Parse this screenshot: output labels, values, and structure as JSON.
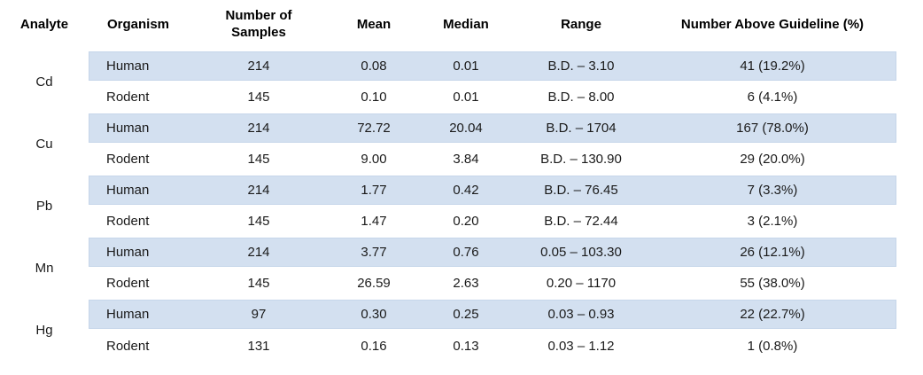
{
  "table": {
    "band_color": "#d3e0f0",
    "columns": {
      "analyte": "Analyte",
      "organism": "Organism",
      "samples": "Number of Samples",
      "mean": "Mean",
      "median": "Median",
      "range": "Range",
      "above": "Number Above Guideline (%)"
    },
    "groups": [
      {
        "analyte": "Cd",
        "rows": [
          {
            "organism": "Human",
            "samples": "214",
            "mean": "0.08",
            "median": "0.01",
            "range": "B.D. – 3.10",
            "above": "41 (19.2%)"
          },
          {
            "organism": "Rodent",
            "samples": "145",
            "mean": "0.10",
            "median": "0.01",
            "range": "B.D. – 8.00",
            "above": "6 (4.1%)"
          }
        ]
      },
      {
        "analyte": "Cu",
        "rows": [
          {
            "organism": "Human",
            "samples": "214",
            "mean": "72.72",
            "median": "20.04",
            "range": "B.D. – 1704",
            "above": "167 (78.0%)"
          },
          {
            "organism": "Rodent",
            "samples": "145",
            "mean": "9.00",
            "median": "3.84",
            "range": "B.D. – 130.90",
            "above": "29 (20.0%)"
          }
        ]
      },
      {
        "analyte": "Pb",
        "rows": [
          {
            "organism": "Human",
            "samples": "214",
            "mean": "1.77",
            "median": "0.42",
            "range": "B.D. – 76.45",
            "above": "7 (3.3%)"
          },
          {
            "organism": "Rodent",
            "samples": "145",
            "mean": "1.47",
            "median": "0.20",
            "range": "B.D. – 72.44",
            "above": "3 (2.1%)"
          }
        ]
      },
      {
        "analyte": "Mn",
        "rows": [
          {
            "organism": "Human",
            "samples": "214",
            "mean": "3.77",
            "median": "0.76",
            "range": "0.05 – 103.30",
            "above": "26 (12.1%)"
          },
          {
            "organism": "Rodent",
            "samples": "145",
            "mean": "26.59",
            "median": "2.63",
            "range": "0.20 – 1170",
            "above": "55 (38.0%)"
          }
        ]
      },
      {
        "analyte": "Hg",
        "rows": [
          {
            "organism": "Human",
            "samples": "97",
            "mean": "0.30",
            "median": "0.25",
            "range": "0.03 – 0.93",
            "above": "22 (22.7%)"
          },
          {
            "organism": "Rodent",
            "samples": "131",
            "mean": "0.16",
            "median": "0.13",
            "range": "0.03 – 1.12",
            "above": "1 (0.8%)"
          }
        ]
      }
    ]
  }
}
